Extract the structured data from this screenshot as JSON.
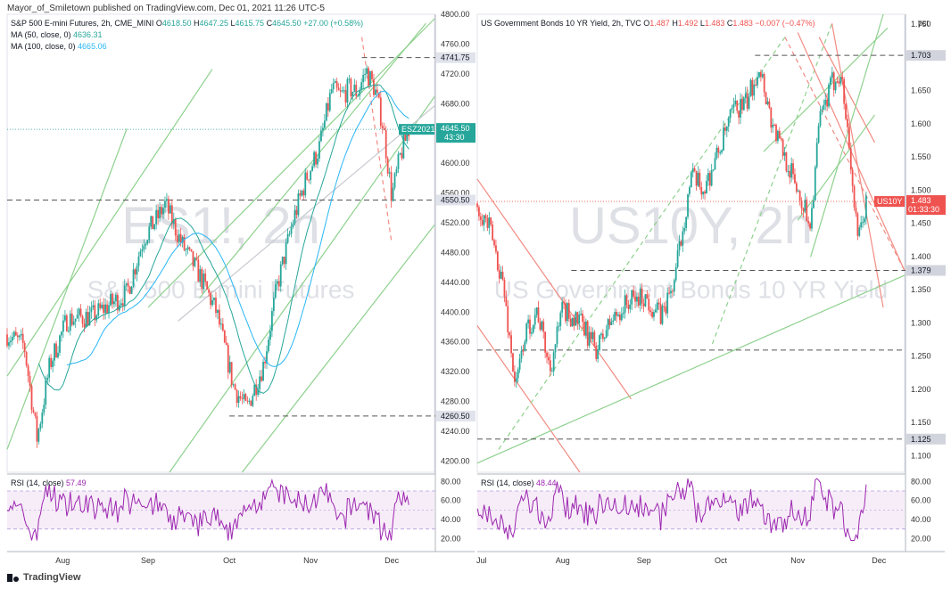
{
  "publisher": "Mayor_of_Smiletown published on TradingView.com, Dec 01, 2021 11:26 UTC-5",
  "footer": {
    "brand": "TradingView"
  },
  "colors": {
    "up": "#26a69a",
    "down": "#ef5350",
    "green_line": "#8ed18e",
    "red_line": "#f28b82",
    "rsi": "#9c27b0",
    "rsi_band": "#f3e5f5",
    "ma50": "#26a69a",
    "ma100": "#29b6f6"
  },
  "chart_data": [
    {
      "type": "line",
      "panel": "left",
      "header": {
        "symbol": "S&P 500 E-mini Futures, 2h, CME_MINI",
        "o_label": "O",
        "o": "4618.50",
        "h_label": "H",
        "h": "4647.25",
        "l_label": "L",
        "l": "4615.75",
        "c_label": "C",
        "c": "4645.50",
        "chg": "+27.00 (+0.58%)"
      },
      "ma50": {
        "label": "MA (50, close, 0)",
        "value": "4636.31"
      },
      "ma100": {
        "label": "MA (100, close, 0)",
        "value": "4665.06"
      },
      "watermark": {
        "ticker": "ES1!, 2h",
        "name": "S&P 500 E-mini Futures"
      },
      "y_ticks": [
        "4800.00",
        "4760.00",
        "4720.00",
        "4680.00",
        "4640.00",
        "4600.00",
        "4560.00",
        "4520.00",
        "4480.00",
        "4440.00",
        "4400.00",
        "4360.00",
        "4320.00",
        "4280.00",
        "4240.00",
        "4200.00"
      ],
      "ylim": [
        4185,
        4800
      ],
      "x_ticks": [
        "Aug",
        "Sep",
        "Oct",
        "Nov",
        "Dec"
      ],
      "price_labels": {
        "high": "4741.75",
        "support": "4550.50",
        "low": "4260.50",
        "current": "4645.50",
        "contract": "ESZ2021",
        "countdown": "43:30"
      },
      "levels": [
        4741.75,
        4550.5,
        4260.5
      ],
      "waypoints": [
        [
          0,
          4370
        ],
        [
          0.04,
          4355
        ],
        [
          0.07,
          4230
        ],
        [
          0.1,
          4330
        ],
        [
          0.14,
          4390
        ],
        [
          0.2,
          4395
        ],
        [
          0.24,
          4410
        ],
        [
          0.28,
          4425
        ],
        [
          0.32,
          4500
        ],
        [
          0.35,
          4525
        ],
        [
          0.37,
          4545
        ],
        [
          0.41,
          4490
        ],
        [
          0.45,
          4450
        ],
        [
          0.49,
          4400
        ],
        [
          0.53,
          4300
        ],
        [
          0.56,
          4270
        ],
        [
          0.6,
          4330
        ],
        [
          0.63,
          4430
        ],
        [
          0.67,
          4525
        ],
        [
          0.7,
          4580
        ],
        [
          0.73,
          4620
        ],
        [
          0.76,
          4700
        ],
        [
          0.78,
          4690
        ],
        [
          0.8,
          4700
        ],
        [
          0.82,
          4695
        ],
        [
          0.84,
          4725
        ],
        [
          0.86,
          4700
        ],
        [
          0.88,
          4650
        ],
        [
          0.9,
          4555
        ],
        [
          0.92,
          4610
        ],
        [
          0.94,
          4645
        ]
      ],
      "rsi": {
        "label": "RSI (14, close)",
        "value": "57.49",
        "ticks": [
          "80.00",
          "60.00",
          "40.00",
          "20.00"
        ],
        "upper": 70,
        "lower": 30
      }
    },
    {
      "type": "line",
      "panel": "right",
      "header": {
        "symbol": "US Government Bonds 10 YR Yield, 2h, TVC",
        "o_label": "O",
        "o": "1.487",
        "h_label": "H",
        "h": "1.492",
        "l_label": "L",
        "l": "1.483",
        "c_label": "C",
        "c": "1.483",
        "chg": "−0.007 (−0.47%)"
      },
      "unit": "pct",
      "watermark": {
        "ticker": "US10Y, 2h",
        "name": "US Government Bonds 10 YR Yield"
      },
      "y_ticks": [
        "1.750",
        "1.700",
        "1.650",
        "1.600",
        "1.550",
        "1.500",
        "1.450",
        "1.400",
        "1.350",
        "1.300",
        "1.250",
        "1.200",
        "1.150",
        "1.100"
      ],
      "ylim": [
        1.075,
        1.765
      ],
      "x_ticks": [
        "Jul",
        "Aug",
        "Sep",
        "Oct",
        "Nov",
        "Dec"
      ],
      "price_labels": {
        "high": "1.703",
        "mid": "1.379",
        "low": "1.125",
        "current": "1.483",
        "ticker": "US10Y",
        "countdown": "01:33:30"
      },
      "levels": [
        1.703,
        1.379,
        1.259,
        1.125
      ],
      "waypoints": [
        [
          0,
          1.48
        ],
        [
          0.03,
          1.44
        ],
        [
          0.06,
          1.36
        ],
        [
          0.09,
          1.2
        ],
        [
          0.11,
          1.28
        ],
        [
          0.14,
          1.32
        ],
        [
          0.17,
          1.23
        ],
        [
          0.2,
          1.32
        ],
        [
          0.24,
          1.3
        ],
        [
          0.28,
          1.26
        ],
        [
          0.31,
          1.3
        ],
        [
          0.35,
          1.33
        ],
        [
          0.39,
          1.34
        ],
        [
          0.43,
          1.31
        ],
        [
          0.46,
          1.36
        ],
        [
          0.5,
          1.52
        ],
        [
          0.53,
          1.5
        ],
        [
          0.56,
          1.55
        ],
        [
          0.6,
          1.62
        ],
        [
          0.63,
          1.63
        ],
        [
          0.66,
          1.69
        ],
        [
          0.69,
          1.6
        ],
        [
          0.72,
          1.55
        ],
        [
          0.75,
          1.5
        ],
        [
          0.78,
          1.45
        ],
        [
          0.8,
          1.6
        ],
        [
          0.83,
          1.66
        ],
        [
          0.85,
          1.68
        ],
        [
          0.87,
          1.57
        ],
        [
          0.89,
          1.42
        ],
        [
          0.91,
          1.48
        ]
      ],
      "rsi": {
        "label": "RSI (14, close)",
        "value": "48.44",
        "ticks": [
          "80.00",
          "60.00",
          "40.00",
          "20.00"
        ],
        "upper": 70,
        "lower": 30
      }
    }
  ]
}
